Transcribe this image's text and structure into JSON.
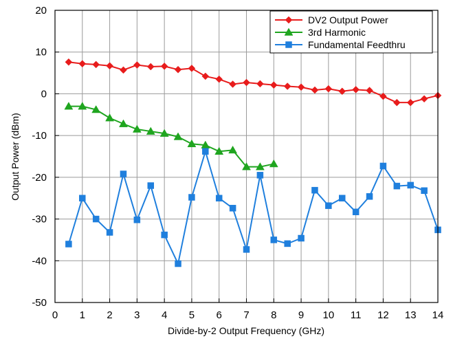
{
  "chart_data": {
    "type": "line",
    "title": "",
    "xlabel": "Divide-by-2 Output Frequency (GHz)",
    "ylabel": "Output Power (dBm)",
    "xlim": [
      0,
      14
    ],
    "ylim": [
      -50,
      20
    ],
    "xticks": [
      "0",
      "1",
      "2",
      "3",
      "4",
      "5",
      "6",
      "7",
      "8",
      "9",
      "10",
      "11",
      "12",
      "13",
      "14"
    ],
    "yticks": [
      "20",
      "10",
      "0",
      "-10",
      "-20",
      "-30",
      "-40",
      "-50"
    ],
    "grid": true,
    "legend_position": "top-right",
    "series": [
      {
        "name": "DV2 Output Power",
        "color": "#e81c1c",
        "marker": "diamond",
        "x": [
          0.5,
          1,
          1.5,
          2,
          2.5,
          3,
          3.5,
          4,
          4.5,
          5,
          5.5,
          6,
          6.5,
          7,
          7.5,
          8,
          8.5,
          9,
          9.5,
          10,
          10.5,
          11,
          11.5,
          12,
          12.5,
          13,
          13.5,
          14
        ],
        "y": [
          7.6,
          7.2,
          7.0,
          6.7,
          5.7,
          6.9,
          6.5,
          6.6,
          5.8,
          6.1,
          4.2,
          3.5,
          2.3,
          2.7,
          2.4,
          2.1,
          1.8,
          1.6,
          0.9,
          1.2,
          0.6,
          1.0,
          0.8,
          -0.6,
          -2.1,
          -2.1,
          -1.2,
          -0.4
        ]
      },
      {
        "name": "3rd Harmonic",
        "color": "#1fa51f",
        "marker": "triangle",
        "x": [
          0.5,
          1,
          1.5,
          2,
          2.5,
          3,
          3.5,
          4,
          4.5,
          5,
          5.5,
          6,
          6.5,
          7,
          7.5,
          8
        ],
        "y": [
          -3.0,
          -3.0,
          -3.8,
          -5.8,
          -7.2,
          -8.5,
          -9.0,
          -9.5,
          -10.3,
          -12.0,
          -12.3,
          -13.8,
          -13.5,
          -17.5,
          -17.5,
          -16.8
        ]
      },
      {
        "name": "Fundamental Feedthru",
        "color": "#1f7fdd",
        "marker": "square",
        "x": [
          0.5,
          1,
          1.5,
          2,
          2.5,
          3,
          3.5,
          4,
          4.5,
          5,
          5.5,
          6,
          6.5,
          7,
          7.5,
          8,
          8.5,
          9,
          9.5,
          10,
          10.5,
          11,
          11.5,
          12,
          12.5,
          13,
          13.5,
          14
        ],
        "y": [
          -36.0,
          -25.0,
          -30.0,
          -33.2,
          -19.2,
          -30.2,
          -22.0,
          -33.8,
          -40.7,
          -24.8,
          -13.8,
          -25.0,
          -27.4,
          -37.3,
          -19.5,
          -35.0,
          -35.9,
          -34.6,
          -23.1,
          -26.8,
          -25.0,
          -28.3,
          -24.6,
          -17.3,
          -22.1,
          -21.9,
          -23.2,
          -32.6
        ]
      }
    ]
  }
}
